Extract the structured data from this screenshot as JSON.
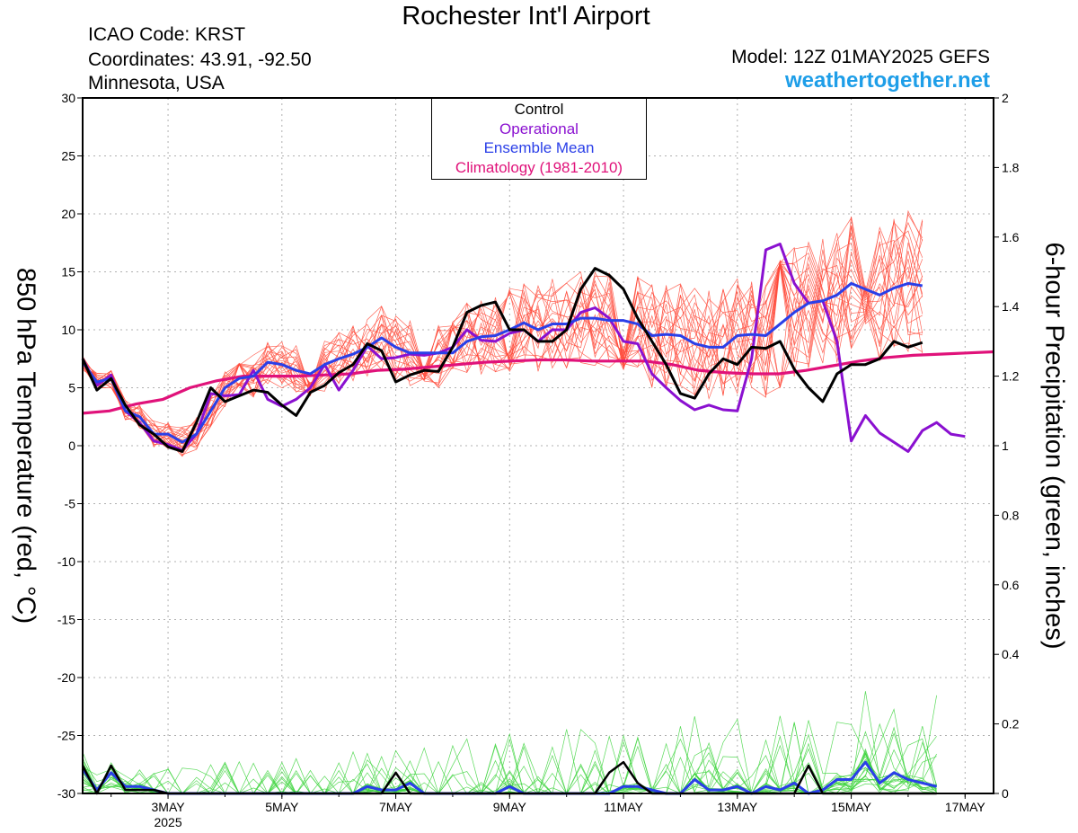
{
  "header": {
    "title": "Rochester Int'l Airport",
    "icao": "ICAO Code: KRST",
    "coordinates": "Coordinates: 43.91, -92.50",
    "state": "Minnesota, USA",
    "model": "Model: 12Z 01MAY2025 GEFS",
    "site": "weathertogether.net"
  },
  "colors": {
    "control": "#000000",
    "operational": "#8a10d0",
    "ensemble_mean": "#2a3fe8",
    "climatology": "#e0127a",
    "members_temp": "#ff4a3a",
    "members_precip": "#3cd43c",
    "site": "#1e9ee8"
  },
  "chart_data": {
    "type": "line",
    "title": "Rochester Int'l Airport",
    "ylabel": "850 hPa Temperature (red, °C)",
    "y2label": "6-hour Precipitation (green, inches)",
    "ylim": [
      -30,
      30
    ],
    "y2lim": [
      0,
      2
    ],
    "yticks": [
      "30",
      "25",
      "20",
      "15",
      "10",
      "5",
      "0",
      "-5",
      "-10",
      "-15",
      "-20",
      "-25",
      "-30"
    ],
    "y2ticks": [
      "2",
      "1.8",
      "1.6",
      "1.4",
      "1.2",
      "1",
      "0.8",
      "0.6",
      "0.4",
      "0.2",
      "0"
    ],
    "xticks": [
      "3MAY",
      "5MAY",
      "7MAY",
      "9MAY",
      "11MAY",
      "13MAY",
      "15MAY",
      "17MAY"
    ],
    "xtick_year": "2025",
    "grid": true,
    "legend": {
      "position": "top-center",
      "entries": [
        "Control",
        "Operational",
        "Ensemble Mean",
        "Climatology (1981-2010)"
      ]
    },
    "x_hours_from_start": [
      0,
      6,
      12,
      18,
      24,
      30,
      36,
      42,
      48,
      54,
      60,
      66,
      72,
      78,
      84,
      90,
      96,
      102,
      108,
      114,
      120,
      126,
      132,
      138,
      144,
      150,
      156,
      162,
      168,
      174,
      180,
      186,
      192,
      198,
      204,
      210,
      216,
      222,
      228,
      234,
      240,
      246,
      252,
      258,
      264,
      270,
      276,
      282,
      288,
      294,
      300,
      306,
      312,
      318,
      324,
      330,
      336,
      342,
      348,
      354,
      360,
      366,
      372,
      378,
      384
    ],
    "series": [
      {
        "name": "Control",
        "values": [
          7.5,
          4.8,
          5.8,
          3.5,
          1.8,
          1.0,
          -0.1,
          -0.5,
          2.0,
          5.0,
          3.8,
          4.3,
          4.8,
          4.6,
          3.5,
          2.6,
          4.6,
          5.2,
          6.3,
          7.0,
          8.8,
          8.2,
          5.5,
          6.1,
          6.5,
          6.4,
          8.5,
          11.5,
          12.1,
          12.4,
          10.0,
          10.0,
          9.0,
          9.0,
          10.0,
          13.5,
          15.3,
          14.7,
          13.5,
          11.0,
          9.0,
          7.0,
          4.5,
          4.1,
          6.2,
          7.5,
          7.0,
          8.5,
          8.4,
          9.0,
          6.6,
          5.0,
          3.8,
          6.2,
          7.0,
          7.0,
          7.5,
          9.0,
          8.5,
          8.9
        ]
      },
      {
        "name": "Operational",
        "values": [
          7.5,
          5.2,
          6.1,
          3.0,
          2.0,
          0.4,
          0.1,
          -0.4,
          1.0,
          4.5,
          4.3,
          4.4,
          6.5,
          4.0,
          3.4,
          4.0,
          5.0,
          7.0,
          4.8,
          6.5,
          8.6,
          7.5,
          7.6,
          7.9,
          7.8,
          8.0,
          8.5,
          10.0,
          9.1,
          9.0,
          9.7,
          10.0,
          9.0,
          10.0,
          10.0,
          11.5,
          11.9,
          11.0,
          9.0,
          8.8,
          6.2,
          5.0,
          3.9,
          3.1,
          3.5,
          3.1,
          3.0,
          7.5,
          16.9,
          17.4,
          14.0,
          12.3,
          12.5,
          9.0,
          0.4,
          2.6,
          1.1,
          0.3,
          -0.5,
          1.3,
          2.0,
          1.0,
          0.8
        ]
      },
      {
        "name": "Ensemble Mean",
        "values": [
          7.2,
          5.5,
          5.8,
          3.0,
          2.5,
          1.0,
          1.0,
          0.3,
          1.0,
          3.0,
          5.0,
          5.8,
          6.0,
          7.2,
          7.0,
          6.5,
          6.2,
          7.0,
          7.5,
          7.9,
          8.5,
          9.3,
          8.5,
          8.0,
          8.0,
          8.0,
          8.0,
          9.0,
          9.4,
          9.5,
          10.0,
          10.6,
          10.0,
          10.5,
          10.5,
          11.0,
          11.0,
          10.8,
          10.8,
          10.5,
          9.5,
          9.6,
          9.5,
          8.8,
          8.5,
          8.5,
          9.5,
          9.6,
          9.5,
          10.5,
          11.5,
          12.3,
          12.5,
          13.0,
          14.0,
          13.5,
          13.0,
          13.6,
          14.0,
          13.8
        ]
      },
      {
        "name": "Climatology (1981-2010)",
        "values": [
          2.8,
          3.0,
          3.6,
          4.0,
          5.0,
          5.6,
          6.0,
          6.0,
          6.0,
          6.1,
          6.2,
          6.5,
          6.6,
          6.8,
          7.0,
          7.2,
          7.3,
          7.4,
          7.4,
          7.3,
          7.3,
          7.3,
          7.0,
          6.5,
          6.3,
          6.2,
          6.2,
          6.5,
          6.9,
          7.3,
          7.6,
          7.8,
          7.9,
          8.0,
          8.1
        ]
      },
      {
        "name": "Control precipitation",
        "axis": "y2",
        "values": [
          0.08,
          0,
          0.08,
          0.01,
          0.01,
          0.01,
          0,
          0,
          0,
          0,
          0,
          0,
          0,
          0,
          0,
          0,
          0,
          0,
          0,
          0,
          0,
          0,
          0.06,
          0,
          0,
          0,
          0,
          0,
          0,
          0,
          0,
          0,
          0,
          0,
          0,
          0,
          0,
          0.06,
          0.09,
          0.03,
          0,
          0,
          0,
          0,
          0,
          0,
          0,
          0,
          0,
          0,
          0,
          0.08,
          0,
          0,
          0,
          0,
          0,
          0,
          0,
          0,
          0
        ]
      },
      {
        "name": "Ensemble mean precipitation",
        "axis": "y2",
        "values": [
          0.07,
          0.01,
          0.06,
          0.02,
          0.02,
          0.01,
          0,
          0,
          0,
          0,
          0,
          0,
          0,
          0,
          0,
          0,
          0,
          0,
          0,
          0,
          0.02,
          0.01,
          0.01,
          0.03,
          0,
          0,
          0,
          0,
          0,
          0,
          0.02,
          0,
          0,
          0,
          0,
          0,
          0,
          0,
          0.02,
          0.02,
          0.01,
          0.0,
          0.0,
          0.04,
          0.01,
          0.01,
          0.02,
          0.0,
          0.02,
          0.01,
          0.03,
          0,
          0.01,
          0.04,
          0.04,
          0.09,
          0.03,
          0.06,
          0.04,
          0.03,
          0.02
        ]
      }
    ]
  }
}
